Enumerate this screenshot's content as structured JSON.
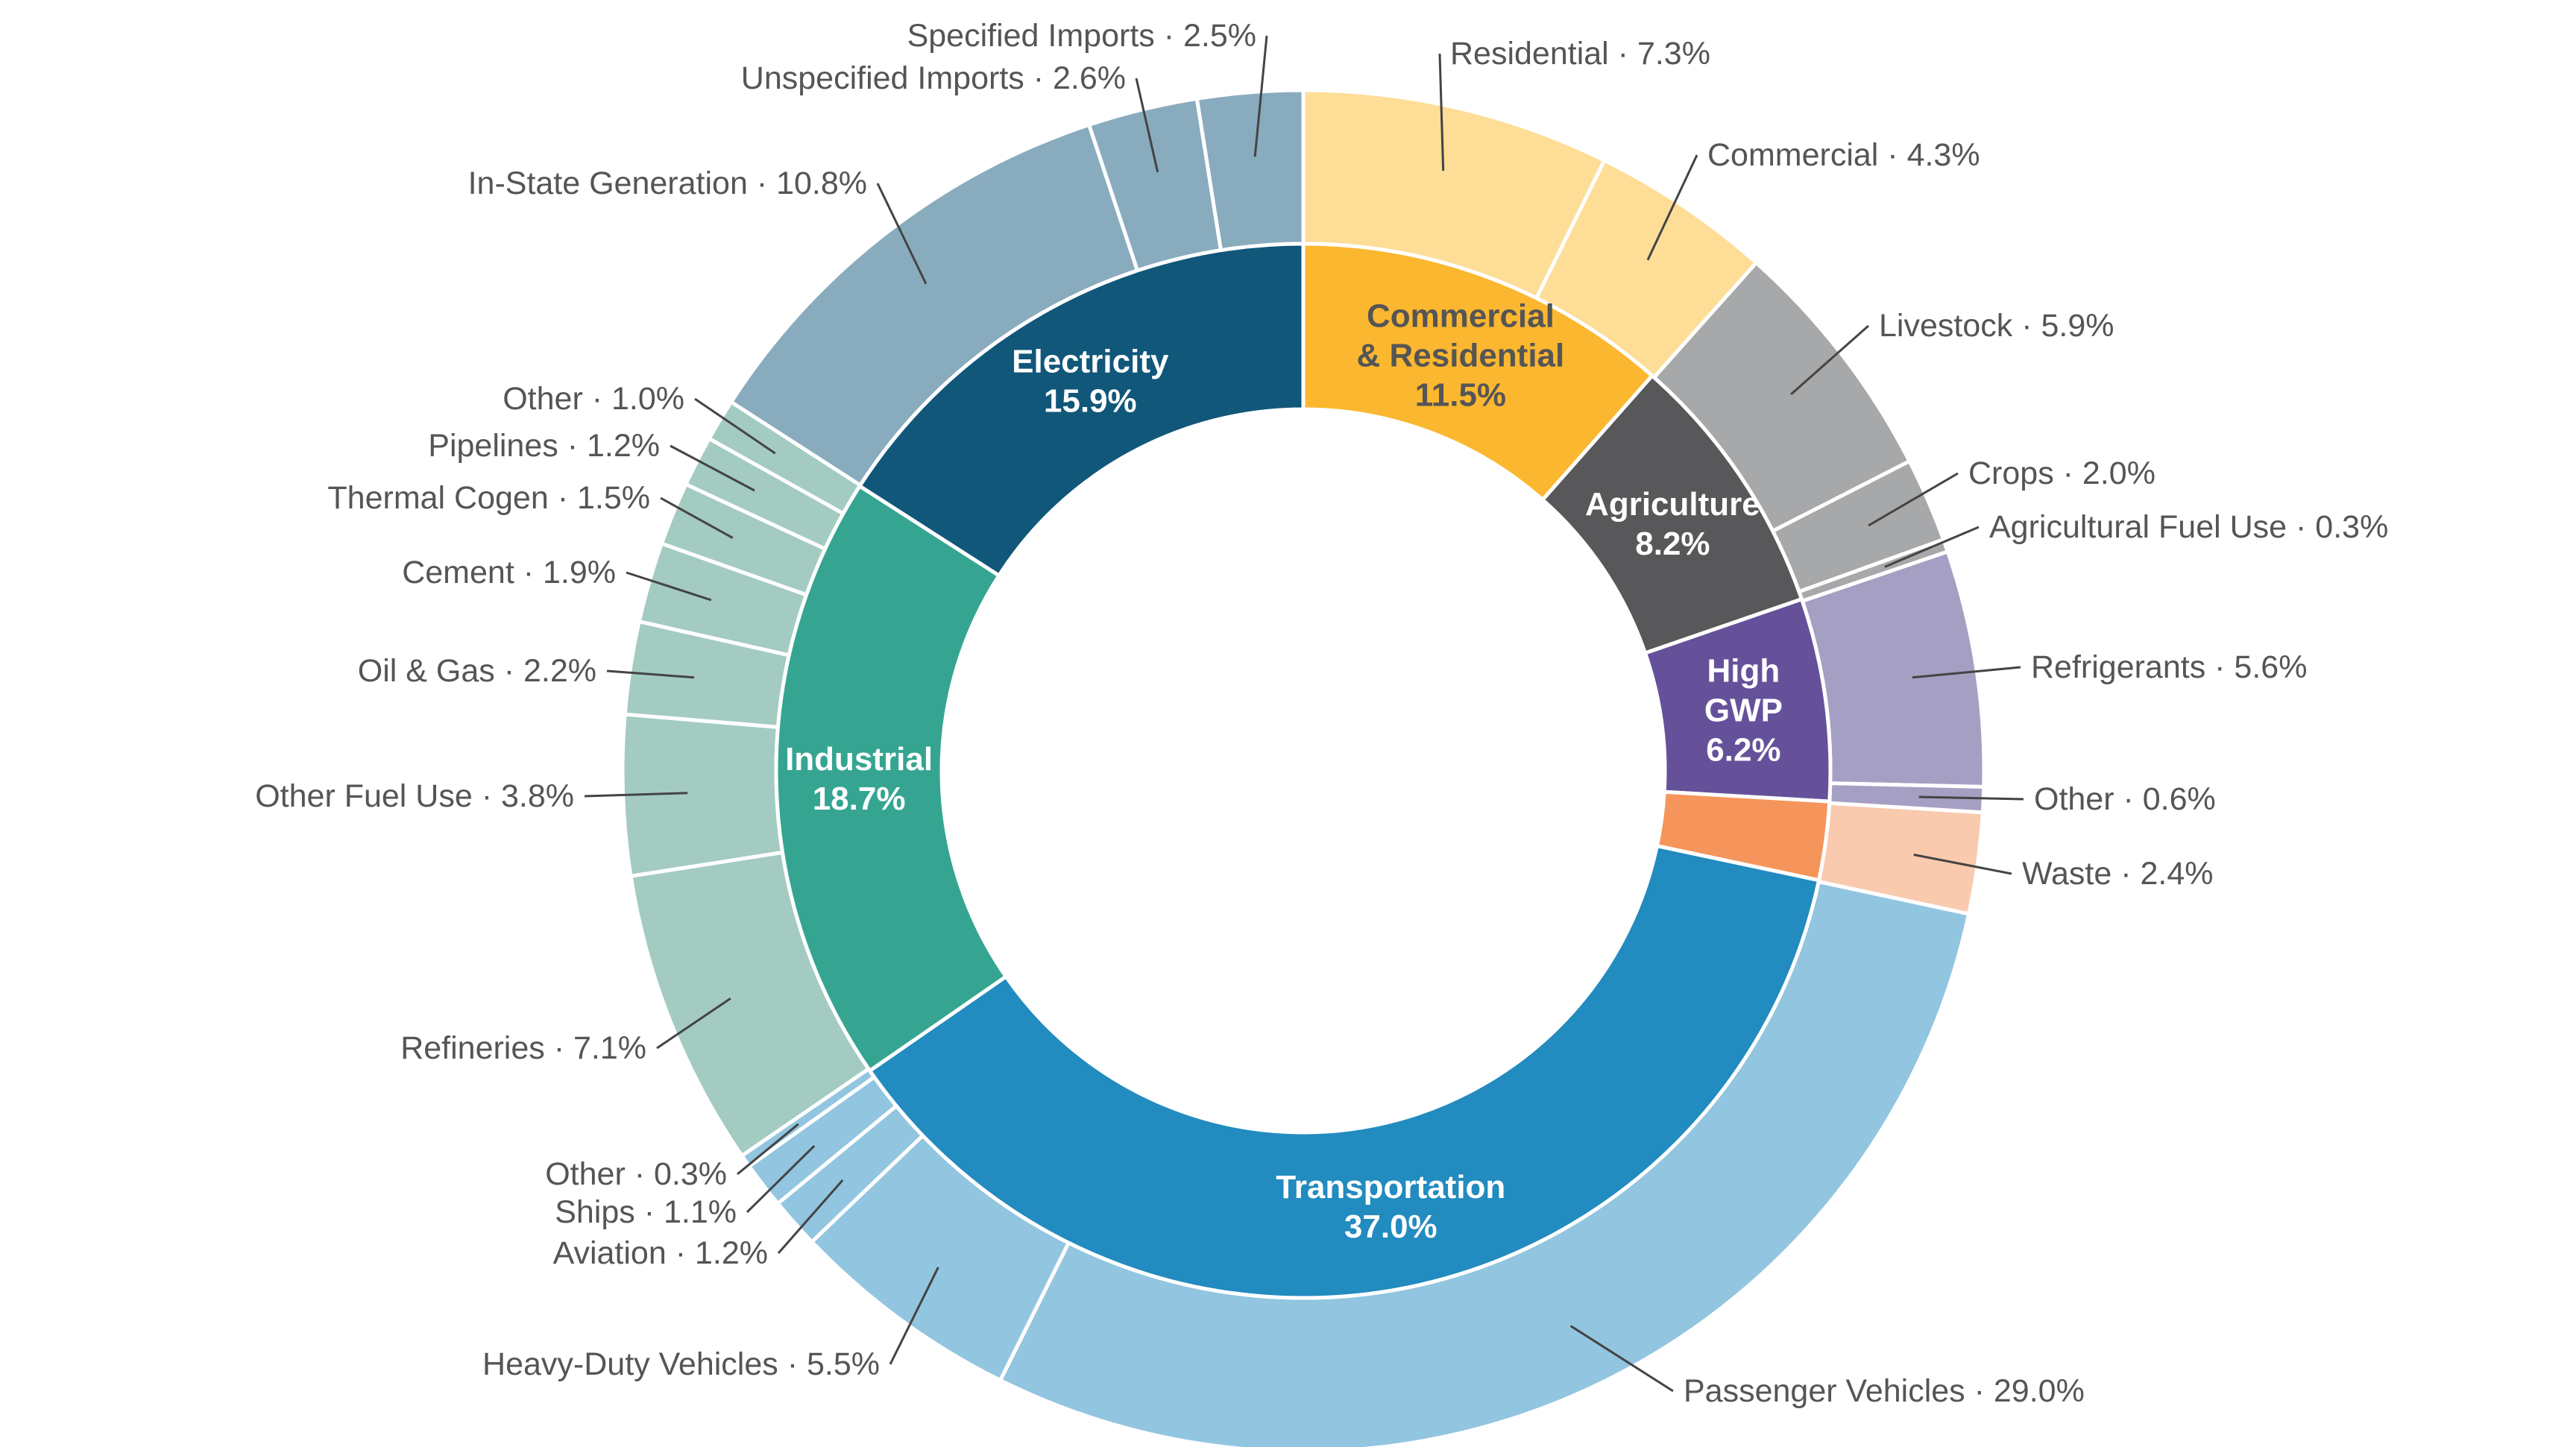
{
  "chart_data": {
    "type": "pie",
    "title": "",
    "units": "%",
    "inner": [
      {
        "name": "Commercial & Residential",
        "lines": [
          "Commercial",
          "& Residential"
        ],
        "value": 11.5,
        "value_label": "11.5%",
        "color": "#FBB72F",
        "text_color": "#555555"
      },
      {
        "name": "Agriculture",
        "lines": [
          "Agriculture"
        ],
        "value": 8.2,
        "value_label": "8.2%",
        "color": "#58585A",
        "text_color": "#FFFFFF"
      },
      {
        "name": "High GWP",
        "lines": [
          "High",
          "GWP"
        ],
        "value": 6.2,
        "value_label": "6.2%",
        "color": "#65519A",
        "text_color": "#FFFFFF"
      },
      {
        "name": "Waste",
        "lines": [],
        "value": 2.4,
        "value_label": "",
        "color": "#F6955B",
        "text_color": "#FFFFFF"
      },
      {
        "name": "Transportation",
        "lines": [
          "Transportation"
        ],
        "value": 37.0,
        "value_label": "37.0%",
        "color": "#228BBF",
        "text_color": "#FFFFFF"
      },
      {
        "name": "Industrial",
        "lines": [
          "Industrial"
        ],
        "value": 18.7,
        "value_label": "18.7%",
        "color": "#35A592",
        "text_color": "#FFFFFF"
      },
      {
        "name": "Electricity",
        "lines": [
          "Electricity"
        ],
        "value": 15.9,
        "value_label": "15.9%",
        "color": "#10577A",
        "text_color": "#FFFFFF"
      }
    ],
    "outer": [
      {
        "label": "Residential · 7.3%",
        "value": 7.3,
        "color": "#FEDD97"
      },
      {
        "label": "Commercial · 4.3%",
        "value": 4.3,
        "color": "#FEDD97"
      },
      {
        "label": "Livestock · 5.9%",
        "value": 5.9,
        "color": "#A7A8AA"
      },
      {
        "label": "Crops · 2.0%",
        "value": 2.0,
        "color": "#A7A8AA"
      },
      {
        "label": "Agricultural Fuel Use · 0.3%",
        "value": 0.3,
        "color": "#A7A8AA"
      },
      {
        "label": "Refrigerants · 5.6%",
        "value": 5.6,
        "color": "#A59FC4"
      },
      {
        "label": "Other · 0.6%",
        "value": 0.6,
        "color": "#A59FC4"
      },
      {
        "label": "Waste · 2.4%",
        "value": 2.4,
        "color": "#F9CAAE"
      },
      {
        "label": "Passenger Vehicles · 29.0%",
        "value": 29.0,
        "color": "#92C5E0"
      },
      {
        "label": "Heavy-Duty Vehicles · 5.5%",
        "value": 5.5,
        "color": "#92C5E0"
      },
      {
        "label": "Aviation · 1.2%",
        "value": 1.2,
        "color": "#92C5E0"
      },
      {
        "label": "Ships · 1.1%",
        "value": 1.1,
        "color": "#92C5E0"
      },
      {
        "label": "Other · 0.3%",
        "value": 0.3,
        "color": "#92C5E0"
      },
      {
        "label": "Refineries · 7.1%",
        "value": 7.1,
        "color": "#A3CBC2"
      },
      {
        "label": "Other Fuel Use · 3.8%",
        "value": 3.8,
        "color": "#A3CBC2"
      },
      {
        "label": "Oil & Gas · 2.2%",
        "value": 2.2,
        "color": "#A3CBC2"
      },
      {
        "label": "Cement · 1.9%",
        "value": 1.9,
        "color": "#A3CBC2"
      },
      {
        "label": "Thermal Cogen · 1.5%",
        "value": 1.5,
        "color": "#A3CBC2"
      },
      {
        "label": "Pipelines · 1.2%",
        "value": 1.2,
        "color": "#A3CBC2"
      },
      {
        "label": "Other · 1.0%",
        "value": 1.0,
        "color": "#A3CBC2"
      },
      {
        "label": "In-State Generation · 10.8%",
        "value": 10.8,
        "color": "#89ABBE"
      },
      {
        "label": "Unspecified Imports · 2.6%",
        "value": 2.6,
        "color": "#89ABBE"
      },
      {
        "label": "Specified Imports · 2.5%",
        "value": 2.5,
        "color": "#89ABBE"
      }
    ]
  }
}
